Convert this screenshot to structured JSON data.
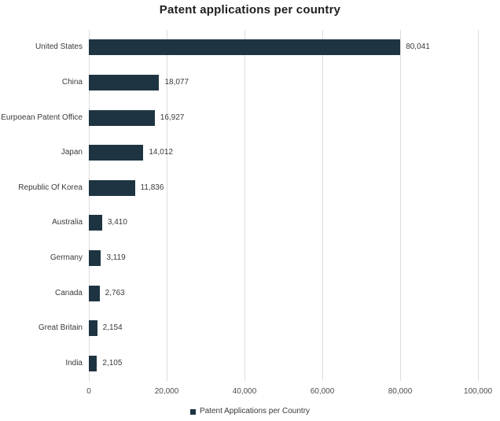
{
  "title": "Patent applications per country",
  "legend": {
    "label": "Patent Applications per Country"
  },
  "colors": {
    "bar": "#1e3442",
    "gridline": "#dcdcdc",
    "title_text": "#1f1f1f",
    "label_text": "#3a3a3a",
    "axis_text": "#4d4d4d",
    "background": "#ffffff"
  },
  "chart_data": {
    "type": "bar",
    "orientation": "horizontal",
    "title": "Patent applications per country",
    "categories": [
      "United States",
      "China",
      "Eurpoean Patent Office",
      "Japan",
      "Republic Of Korea",
      "Australia",
      "Germany",
      "Canada",
      "Great Britain",
      "India"
    ],
    "values": [
      80041,
      18077,
      16927,
      14012,
      11836,
      3410,
      3119,
      2763,
      2154,
      2105
    ],
    "value_labels": [
      "80,041",
      "18,077",
      "16,927",
      "14,012",
      "11,836",
      "3,410",
      "3,119",
      "2,763",
      "2,154",
      "2,105"
    ],
    "series_name": "Patent Applications per Country",
    "x_ticks": [
      0,
      20000,
      40000,
      60000,
      80000,
      100000
    ],
    "x_tick_labels": [
      "0",
      "20,000",
      "40,000",
      "60,000",
      "80,000",
      "100,000"
    ],
    "xlim": [
      0,
      100000
    ],
    "xlabel": "",
    "ylabel": "",
    "grid": "vertical-gridlines-on",
    "legend_position": "bottom-center",
    "data_labels": "outside-end"
  }
}
